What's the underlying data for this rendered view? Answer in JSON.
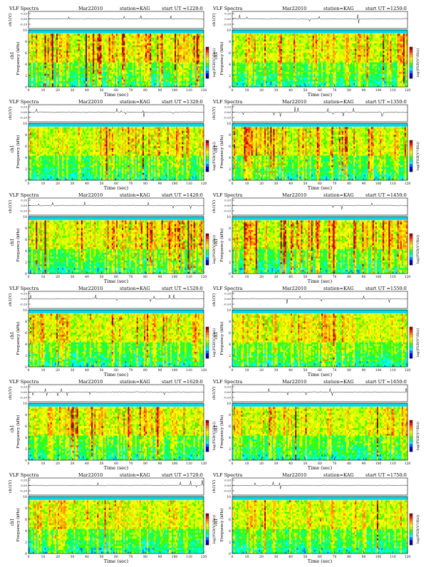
{
  "page_title": "VLF Spectra",
  "colors": {
    "colormap": [
      "#000080",
      "#0000ff",
      "#0080ff",
      "#00ffff",
      "#00ff80",
      "#40ff00",
      "#c0ff00",
      "#ffff00",
      "#ffc000",
      "#ff8000",
      "#ff2000",
      "#a00000"
    ],
    "background": "#00d7e6",
    "axis": "#000000"
  },
  "chart_data": [
    {
      "type": "heatmap",
      "title": "VLF Spectra",
      "date": "Mar22010",
      "station": "station=KAG",
      "start": "start  UT  =1220:0",
      "top_ylabel": "ch1(V)",
      "top_yticks": [
        "0.20",
        "0.00",
        "-0.20"
      ],
      "channel_label": "ch1",
      "ylabel": "Frequency  (kHz)",
      "xlabel": "Time  (sec)",
      "xticks": [
        "0",
        "10",
        "20",
        "30",
        "40",
        "50",
        "60",
        "70",
        "80",
        "90",
        "100",
        "110",
        "120"
      ],
      "xlim": [
        0,
        120
      ],
      "yticks": [
        "0",
        "2",
        "4",
        "6",
        "8",
        "10"
      ],
      "ylim": [
        0,
        10
      ],
      "colorbar_label": "log(PSD(V²/Hz))",
      "colorbar_ticks": [
        "-",
        "-"
      ],
      "activity": 1.15,
      "seed": 11
    },
    {
      "type": "heatmap",
      "title": "VLF Spectra",
      "date": "Mar22010",
      "station": "station=KAG",
      "start": "start  UT  =1250:0",
      "top_ylabel": "ch1(V)",
      "top_yticks": [
        "0.20",
        "0.00",
        "-0.20"
      ],
      "channel_label": "ch1",
      "ylabel": "Frequency  (kHz)",
      "xlabel": "Time  (sec)",
      "xticks": [
        "0",
        "10",
        "20",
        "30",
        "40",
        "50",
        "60",
        "70",
        "80",
        "90",
        "100",
        "110",
        "120"
      ],
      "xlim": [
        0,
        120
      ],
      "yticks": [
        "0",
        "2",
        "4",
        "6",
        "8",
        "10"
      ],
      "ylim": [
        0,
        10
      ],
      "colorbar_label": "log(PSD(V²/Hz))",
      "colorbar_ticks": [
        "-",
        "-"
      ],
      "activity": 0.95,
      "seed": 23
    },
    {
      "type": "heatmap",
      "title": "VLF Spectra",
      "date": "Mar22010",
      "station": "station=KAG",
      "start": "start  UT  =1320:0",
      "top_ylabel": "ch1(V)",
      "top_yticks": [
        "0.20",
        "0.00",
        "-0.20"
      ],
      "channel_label": "ch1",
      "ylabel": "Frequency  (kHz)",
      "xlabel": "Time  (sec)",
      "xticks": [
        "0",
        "10",
        "20",
        "30",
        "40",
        "50",
        "60",
        "70",
        "80",
        "90",
        "100",
        "110",
        "120"
      ],
      "xlim": [
        0,
        120
      ],
      "yticks": [
        "0",
        "2",
        "4",
        "6",
        "8",
        "10"
      ],
      "ylim": [
        0,
        10
      ],
      "colorbar_label": "log(PSD(V²/Hz))",
      "colorbar_ticks": [
        "-",
        "-"
      ],
      "activity": 0.85,
      "seed": 37
    },
    {
      "type": "heatmap",
      "title": "VLF Spectra",
      "date": "Mar22010",
      "station": "station=KAG",
      "start": "start  UT  =1350:0",
      "top_ylabel": "ch1(V)",
      "top_yticks": [
        "0.20",
        "0.00",
        "-0.20"
      ],
      "channel_label": "ch1",
      "ylabel": "Frequency  (kHz)",
      "xlabel": "Time  (sec)",
      "xticks": [
        "0",
        "10",
        "20",
        "30",
        "40",
        "50",
        "60",
        "70",
        "80",
        "90",
        "100",
        "110",
        "120"
      ],
      "xlim": [
        0,
        120
      ],
      "yticks": [
        "0",
        "2",
        "4",
        "6",
        "8",
        "10"
      ],
      "ylim": [
        0,
        10
      ],
      "colorbar_label": "log(PSD(V²/Hz))",
      "colorbar_ticks": [
        "-",
        "-"
      ],
      "activity": 1.05,
      "seed": 41
    },
    {
      "type": "heatmap",
      "title": "VLF Spectra",
      "date": "Mar22010",
      "station": "station=KAG",
      "start": "start  UT  =1420:0",
      "top_ylabel": "ch1(V)",
      "top_yticks": [
        "0.20",
        "0.00",
        "-0.20"
      ],
      "channel_label": "ch1",
      "ylabel": "Frequency  (kHz)",
      "xlabel": "Time  (sec)",
      "xticks": [
        "0",
        "10",
        "20",
        "30",
        "40",
        "50",
        "60",
        "70",
        "80",
        "90",
        "100",
        "110",
        "120"
      ],
      "xlim": [
        0,
        120
      ],
      "yticks": [
        "0",
        "2",
        "4",
        "6",
        "8",
        "10"
      ],
      "ylim": [
        0,
        10
      ],
      "colorbar_label": "log(PSD(V²/Hz))",
      "colorbar_ticks": [
        "-",
        "-"
      ],
      "activity": 1.1,
      "seed": 53
    },
    {
      "type": "heatmap",
      "title": "VLF Spectra",
      "date": "Mar22010",
      "station": "station=KAG",
      "start": "start  UT  =1450:0",
      "top_ylabel": "ch1(V)",
      "top_yticks": [
        "0.20",
        "0.00",
        "-0.20"
      ],
      "channel_label": "ch1",
      "ylabel": "Frequency  (kHz)",
      "xlabel": "Time  (sec)",
      "xticks": [
        "0",
        "10",
        "20",
        "30",
        "40",
        "50",
        "60",
        "70",
        "80",
        "90",
        "100",
        "110",
        "120"
      ],
      "xlim": [
        0,
        120
      ],
      "yticks": [
        "0",
        "2",
        "4",
        "6",
        "8",
        "10"
      ],
      "ylim": [
        0,
        10
      ],
      "colorbar_label": "log(PSD(V²/Hz))",
      "colorbar_ticks": [
        "-",
        "-"
      ],
      "activity": 1.2,
      "seed": 67
    },
    {
      "type": "heatmap",
      "title": "VLF Spectra",
      "date": "Mar22010",
      "station": "station=KAG",
      "start": "start  UT  =1520:0",
      "top_ylabel": "ch1(V)",
      "top_yticks": [
        "0.20",
        "0.00",
        "-0.20"
      ],
      "channel_label": "ch1",
      "ylabel": "Frequency  (kHz)",
      "xlabel": "Time  (sec)",
      "xticks": [
        "0",
        "10",
        "20",
        "30",
        "40",
        "50",
        "60",
        "70",
        "80",
        "90",
        "100",
        "110",
        "120"
      ],
      "xlim": [
        0,
        120
      ],
      "yticks": [
        "0",
        "2",
        "4",
        "6",
        "8",
        "10"
      ],
      "ylim": [
        0,
        10
      ],
      "colorbar_label": "log(PSD(V²/Hz))",
      "colorbar_ticks": [
        "-",
        "-"
      ],
      "activity": 0.9,
      "seed": 79
    },
    {
      "type": "heatmap",
      "title": "VLF Spectra",
      "date": "Mar22010",
      "station": "station=KAG",
      "start": "start  UT  =1550:0",
      "top_ylabel": "ch1(V)",
      "top_yticks": [
        "0.20",
        "0.00",
        "-0.20"
      ],
      "channel_label": "ch1",
      "ylabel": "Frequency  (kHz)",
      "xlabel": "Time  (sec)",
      "xticks": [
        "0",
        "10",
        "20",
        "30",
        "40",
        "50",
        "60",
        "70",
        "80",
        "90",
        "100",
        "110",
        "120"
      ],
      "xlim": [
        0,
        120
      ],
      "yticks": [
        "0",
        "2",
        "4",
        "6",
        "8",
        "10"
      ],
      "ylim": [
        0,
        10
      ],
      "colorbar_label": "log(PSD(V²/Hz))",
      "colorbar_ticks": [
        "-",
        "-"
      ],
      "activity": 0.8,
      "seed": 83
    },
    {
      "type": "heatmap",
      "title": "VLF Spectra",
      "date": "Mar22010",
      "station": "station=KAG",
      "start": "start  UT  =1620:0",
      "top_ylabel": "ch1(V)",
      "top_yticks": [
        "0.20",
        "0.00",
        "-0.20"
      ],
      "channel_label": "ch1",
      "ylabel": "Frequency  (kHz)",
      "xlabel": "Time  (sec)",
      "xticks": [
        "0",
        "10",
        "20",
        "30",
        "40",
        "50",
        "60",
        "70",
        "80",
        "90",
        "100",
        "110",
        "120"
      ],
      "xlim": [
        0,
        120
      ],
      "yticks": [
        "0",
        "2",
        "4",
        "6",
        "8",
        "10"
      ],
      "ylim": [
        0,
        10
      ],
      "colorbar_label": "log(PSD(V²/Hz))",
      "colorbar_ticks": [
        "-",
        "-"
      ],
      "activity": 0.75,
      "seed": 97
    },
    {
      "type": "heatmap",
      "title": "VLF Spectra",
      "date": "Mar22010",
      "station": "station=KAG",
      "start": "start  UT  =1650:0",
      "top_ylabel": "ch1(V)",
      "top_yticks": [
        "0.20",
        "0.00",
        "-0.20"
      ],
      "channel_label": "ch1",
      "ylabel": "Frequency  (kHz)",
      "xlabel": "Time  (sec)",
      "xticks": [
        "0",
        "10",
        "20",
        "30",
        "40",
        "50",
        "60",
        "70",
        "80",
        "90",
        "100",
        "110",
        "120"
      ],
      "xlim": [
        0,
        120
      ],
      "yticks": [
        "0",
        "2",
        "4",
        "6",
        "8",
        "10"
      ],
      "ylim": [
        0,
        10
      ],
      "colorbar_label": "log(PSD(V²/Hz))",
      "colorbar_ticks": [
        "-",
        "-"
      ],
      "activity": 0.7,
      "seed": 101
    },
    {
      "type": "heatmap",
      "title": "VLF Spectra",
      "date": "Mar22010",
      "station": "station=KAG",
      "start": "start  UT  =1720:0",
      "top_ylabel": "ch1(V)",
      "top_yticks": [
        "0.20",
        "0.00",
        "-0.20"
      ],
      "channel_label": "ch1",
      "ylabel": "Frequency  (kHz)",
      "xlabel": "Time  (sec)",
      "xticks": [
        "0",
        "10",
        "20",
        "30",
        "40",
        "50",
        "60",
        "70",
        "80",
        "90",
        "100",
        "110",
        "120"
      ],
      "xlim": [
        0,
        120
      ],
      "yticks": [
        "0",
        "2",
        "4",
        "6",
        "8",
        "10"
      ],
      "ylim": [
        0,
        10
      ],
      "colorbar_label": "log(PSD(V²/Hz))",
      "colorbar_ticks": [
        "-",
        "-"
      ],
      "activity": 0.65,
      "seed": 113
    },
    {
      "type": "heatmap",
      "title": "VLF Spectra",
      "date": "Mar22010",
      "station": "station=KAG",
      "start": "start  UT  =1750:0",
      "top_ylabel": "ch1(V)",
      "top_yticks": [
        "0.20",
        "0.00",
        "-0.20"
      ],
      "channel_label": "ch1",
      "ylabel": "Frequency  (kHz)",
      "xlabel": "Time  (sec)",
      "xticks": [
        "0",
        "10",
        "20",
        "30",
        "40",
        "50",
        "60",
        "70",
        "80",
        "90",
        "100",
        "110",
        "120"
      ],
      "xlim": [
        0,
        120
      ],
      "yticks": [
        "0",
        "2",
        "4",
        "6",
        "8",
        "10"
      ],
      "ylim": [
        0,
        10
      ],
      "colorbar_label": "log(PSD(V²/Hz))",
      "colorbar_ticks": [
        "-",
        "-"
      ],
      "activity": 0.7,
      "seed": 127
    }
  ]
}
